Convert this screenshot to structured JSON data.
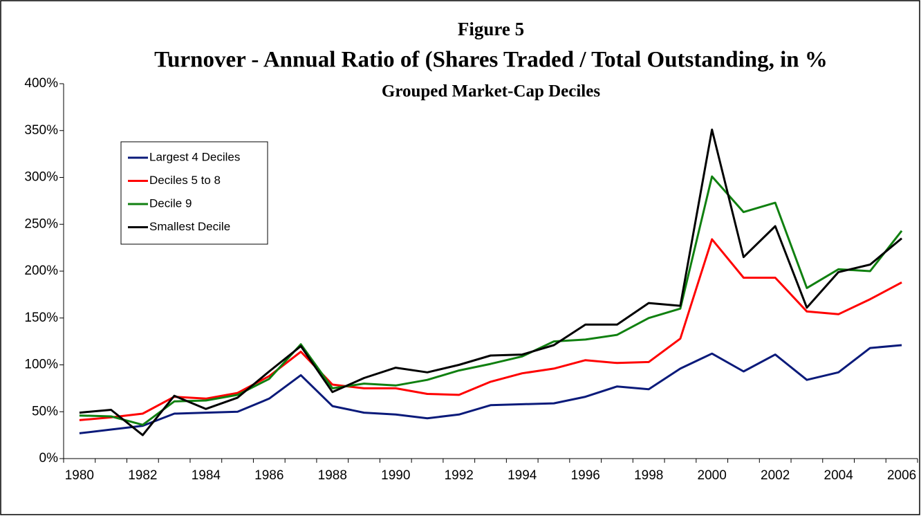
{
  "chart_data": {
    "type": "line",
    "title": "Figure 5",
    "subtitle": "Turnover - Annual Ratio of (Shares Traded  / Total Outstanding, in %",
    "subtitle2": "Grouped Market-Cap Deciles",
    "categories": [
      "1980",
      null,
      "1982",
      null,
      "1984",
      null,
      "1986",
      null,
      "1988",
      null,
      "1990",
      null,
      "1992",
      null,
      "1994",
      null,
      "1996",
      null,
      "1998",
      null,
      "2000",
      null,
      "2002",
      null,
      "2004",
      null,
      "2006"
    ],
    "series": [
      {
        "name": "Largest 4 Deciles",
        "color": "#0a1a7a",
        "values": [
          27,
          31,
          35,
          48,
          49,
          50,
          64,
          89,
          56,
          49,
          47,
          43,
          47,
          57,
          58,
          59,
          66,
          77,
          74,
          96,
          112,
          93,
          111,
          84,
          92,
          118,
          121
        ]
      },
      {
        "name": "Deciles 5 to 8",
        "color": "#ff0000",
        "values": [
          41,
          44,
          48,
          66,
          64,
          70,
          88,
          114,
          79,
          75,
          75,
          69,
          68,
          82,
          91,
          96,
          105,
          102,
          103,
          128,
          234,
          193,
          193,
          157,
          154,
          170,
          188
        ]
      },
      {
        "name": "Decile 9",
        "color": "#108010",
        "values": [
          46,
          45,
          36,
          61,
          62,
          68,
          85,
          122,
          75,
          80,
          78,
          84,
          94,
          101,
          109,
          125,
          127,
          132,
          150,
          160,
          301,
          263,
          273,
          182,
          202,
          200,
          243
        ]
      },
      {
        "name": "Smallest Decile",
        "color": "#000000",
        "values": [
          49,
          52,
          25,
          67,
          53,
          65,
          93,
          120,
          71,
          86,
          97,
          92,
          100,
          110,
          111,
          121,
          143,
          143,
          166,
          163,
          351,
          215,
          248,
          161,
          199,
          207,
          235
        ]
      }
    ],
    "ylim": [
      0,
      400
    ],
    "yticks": [
      {
        "value": 0,
        "label": "0%"
      },
      {
        "value": 50,
        "label": "50%"
      },
      {
        "value": 100,
        "label": "100%"
      },
      {
        "value": 150,
        "label": "150%"
      },
      {
        "value": 200,
        "label": "200%"
      },
      {
        "value": 250,
        "label": "250%"
      },
      {
        "value": 300,
        "label": "300%"
      },
      {
        "value": 350,
        "label": "350%"
      },
      {
        "value": 400,
        "label": "400%"
      }
    ],
    "grid": false
  }
}
